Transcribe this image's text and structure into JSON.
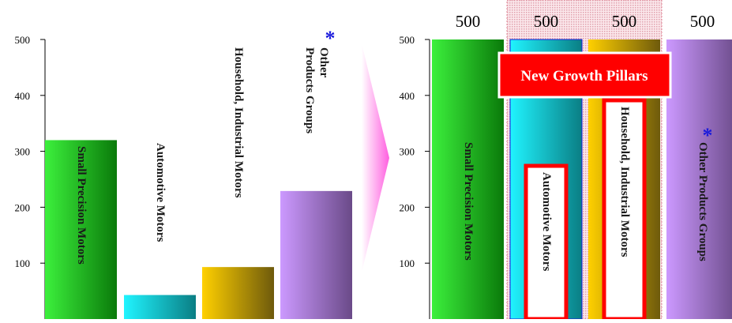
{
  "chart_data": [
    {
      "type": "bar",
      "categories": [
        "Small Precision Motors",
        "Automotive Motors",
        "Household, Industrial Motors",
        "Other Products Groups"
      ],
      "label_lines": [
        [
          "Small Precision Motors"
        ],
        [
          "Automotive Motors"
        ],
        [
          "Household, Industrial Motors"
        ],
        [
          "Other",
          "Products Groups"
        ]
      ],
      "values": [
        320,
        43,
        93,
        229
      ],
      "yticks": [
        100,
        200,
        300,
        400,
        500
      ],
      "ylim": [
        0,
        500
      ],
      "asterisk": "*",
      "colors": [
        "#22c022",
        "#11c8d8",
        "#e6a810",
        "#b07be0"
      ]
    },
    {
      "type": "bar",
      "categories": [
        "Small Precision Motors",
        "Automotive Motors",
        "Household, Industrial Motors",
        "Other Products Groups"
      ],
      "values": [
        500,
        500,
        500,
        500
      ],
      "value_labels": [
        "500",
        "500",
        "500",
        "500"
      ],
      "yticks": [
        100,
        200,
        300,
        400,
        500
      ],
      "ylim": [
        0,
        500
      ],
      "asterisk": "*",
      "callout": "New Growth Pillars",
      "colors": [
        "#22c022",
        "#11c8d8",
        "#e6a810",
        "#b07be0"
      ]
    }
  ]
}
